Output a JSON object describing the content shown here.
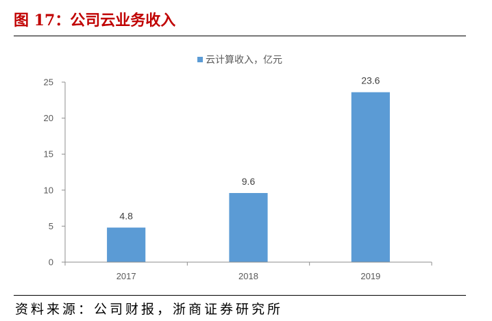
{
  "colors": {
    "title": "#C00000",
    "bar": "#5B9BD5",
    "axis": "#8C8C8C",
    "tick_text": "#595959",
    "rule": "#000000"
  },
  "chart_data": {
    "type": "bar",
    "title": "图 17：公司云业务收入",
    "categories": [
      "2017",
      "2018",
      "2019"
    ],
    "series": [
      {
        "name": "云计算收入，亿元",
        "values": [
          4.8,
          9.6,
          23.6
        ]
      }
    ],
    "yticks": [
      0,
      5,
      10,
      15,
      20,
      25
    ],
    "ylim": [
      0,
      25
    ],
    "grid": false,
    "legend": "top",
    "data_labels": true
  },
  "source": "资料来源：公司财报，浙商证券研究所"
}
